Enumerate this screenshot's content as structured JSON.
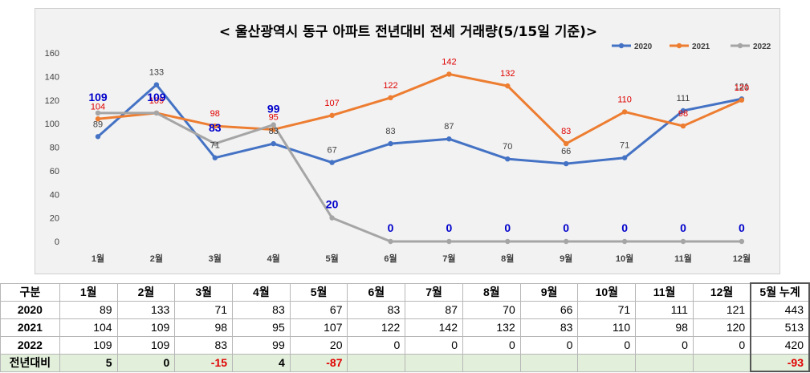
{
  "chart_data": {
    "type": "line",
    "title": "< 울산광역시 동구  아파트 전년대비 전세 거래량(5/15일 기준)>",
    "categories": [
      "1월",
      "2월",
      "3월",
      "4월",
      "5월",
      "6월",
      "7월",
      "8월",
      "9월",
      "10월",
      "11월",
      "12월"
    ],
    "ylim": [
      0,
      160
    ],
    "yticks": [
      0,
      20,
      40,
      60,
      80,
      100,
      120,
      140,
      160
    ],
    "grid": false,
    "legend_position": "top-right",
    "series": [
      {
        "name": "2020",
        "color": "#4472c4",
        "values": [
          89,
          133,
          71,
          83,
          67,
          83,
          87,
          70,
          66,
          71,
          111,
          121
        ]
      },
      {
        "name": "2021",
        "color": "#ed7d31",
        "values": [
          104,
          109,
          98,
          95,
          107,
          122,
          142,
          132,
          83,
          110,
          98,
          120
        ]
      },
      {
        "name": "2022",
        "color": "#a5a5a5",
        "values": [
          109,
          109,
          83,
          99,
          20,
          0,
          0,
          0,
          0,
          0,
          0,
          0
        ]
      }
    ]
  },
  "table": {
    "header_label": "구분",
    "months": [
      "1월",
      "2월",
      "3월",
      "4월",
      "5월",
      "6월",
      "7월",
      "8월",
      "9월",
      "10월",
      "11월",
      "12월"
    ],
    "total_label": "5월 누계",
    "rows": [
      {
        "label": "2020",
        "values": [
          "89",
          "133",
          "71",
          "83",
          "67",
          "83",
          "87",
          "70",
          "66",
          "71",
          "111",
          "121"
        ],
        "total": "443"
      },
      {
        "label": "2021",
        "values": [
          "104",
          "109",
          "98",
          "95",
          "107",
          "122",
          "142",
          "132",
          "83",
          "110",
          "98",
          "120"
        ],
        "total": "513"
      },
      {
        "label": "2022",
        "values": [
          "109",
          "109",
          "83",
          "99",
          "20",
          "0",
          "0",
          "0",
          "0",
          "0",
          "0",
          "0"
        ],
        "total": "420"
      }
    ],
    "diff": {
      "label": "전년대비",
      "values": [
        "5",
        "0",
        "-15",
        "4",
        "-87",
        "",
        "",
        "",
        "",
        "",
        "",
        ""
      ],
      "total": "-93"
    }
  }
}
